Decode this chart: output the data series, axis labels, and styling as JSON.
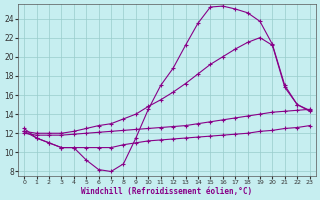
{
  "title": "",
  "xlabel": "Windchill (Refroidissement éolien,°C)",
  "ylabel": "",
  "background_color": "#c6eef0",
  "line_color": "#880088",
  "xlim": [
    -0.5,
    23.5
  ],
  "ylim": [
    7.5,
    25.5
  ],
  "xticks": [
    0,
    1,
    2,
    3,
    4,
    5,
    6,
    7,
    8,
    9,
    10,
    11,
    12,
    13,
    14,
    15,
    16,
    17,
    18,
    19,
    20,
    21,
    22,
    23
  ],
  "yticks": [
    8,
    10,
    12,
    14,
    16,
    18,
    20,
    22,
    24
  ],
  "grid_color": "#99cccc",
  "curves": [
    {
      "x": [
        0,
        1,
        2,
        3,
        4,
        5,
        6,
        7,
        8,
        9,
        10,
        11,
        12,
        13,
        14,
        15,
        16,
        17,
        18,
        19,
        20,
        21,
        22,
        23
      ],
      "y": [
        12.5,
        11.5,
        11.0,
        10.5,
        10.5,
        9.2,
        8.2,
        8.0,
        8.8,
        11.5,
        14.5,
        17.0,
        18.8,
        21.2,
        23.5,
        25.2,
        25.3,
        25.0,
        24.6,
        23.7,
        21.3,
        17.0,
        15.0,
        14.4
      ]
    },
    {
      "x": [
        0,
        1,
        2,
        3,
        4,
        5,
        6,
        7,
        8,
        9,
        10,
        11,
        12,
        13,
        14,
        15,
        16,
        17,
        18,
        19,
        20,
        21,
        22,
        23
      ],
      "y": [
        12.2,
        12.0,
        12.0,
        12.0,
        12.2,
        12.5,
        12.8,
        13.0,
        13.5,
        14.0,
        14.8,
        15.5,
        16.3,
        17.2,
        18.2,
        19.2,
        20.0,
        20.8,
        21.5,
        22.0,
        21.2,
        16.8,
        15.0,
        14.3
      ]
    },
    {
      "x": [
        0,
        1,
        2,
        3,
        4,
        5,
        6,
        7,
        8,
        9,
        10,
        11,
        12,
        13,
        14,
        15,
        16,
        17,
        18,
        19,
        20,
        21,
        22,
        23
      ],
      "y": [
        12.0,
        11.8,
        11.8,
        11.8,
        11.9,
        12.0,
        12.1,
        12.2,
        12.3,
        12.4,
        12.5,
        12.6,
        12.7,
        12.8,
        13.0,
        13.2,
        13.4,
        13.6,
        13.8,
        14.0,
        14.2,
        14.3,
        14.4,
        14.5
      ]
    },
    {
      "x": [
        0,
        1,
        2,
        3,
        4,
        5,
        6,
        7,
        8,
        9,
        10,
        11,
        12,
        13,
        14,
        15,
        16,
        17,
        18,
        19,
        20,
        21,
        22,
        23
      ],
      "y": [
        12.2,
        11.5,
        11.0,
        10.5,
        10.5,
        10.5,
        10.5,
        10.5,
        10.8,
        11.0,
        11.2,
        11.3,
        11.4,
        11.5,
        11.6,
        11.7,
        11.8,
        11.9,
        12.0,
        12.2,
        12.3,
        12.5,
        12.6,
        12.8
      ]
    }
  ]
}
